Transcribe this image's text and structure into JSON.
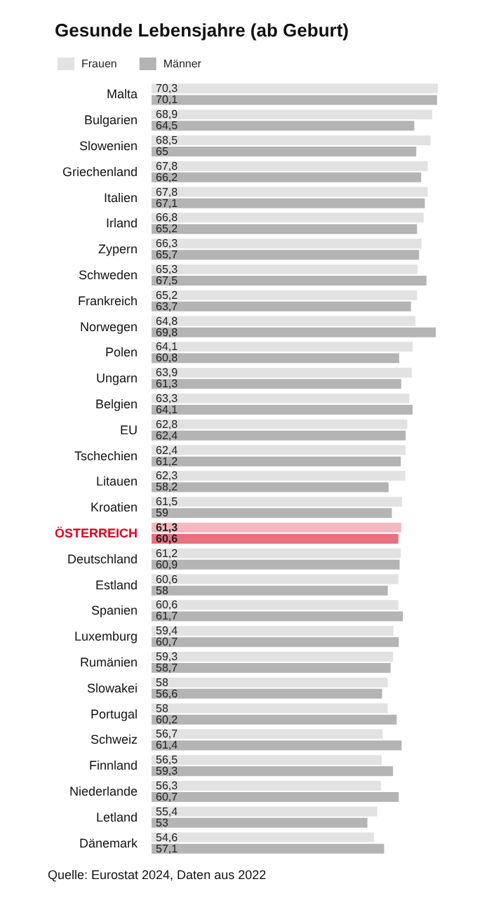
{
  "chart_data": {
    "type": "bar",
    "orientation": "horizontal",
    "title": "Gesunde Lebensjahre (ab Geburt)",
    "legend": "top left",
    "data_labels": true,
    "categories": [
      "Malta",
      "Bulgarien",
      "Slowenien",
      "Griechenland",
      "Italien",
      "Irland",
      "Zypern",
      "Schweden",
      "Frankreich",
      "Norwegen",
      "Polen",
      "Ungarn",
      "Belgien",
      "EU",
      "Tschechien",
      "Litauen",
      "Kroatien",
      "ÖSTERREICH",
      "Deutschland",
      "Estland",
      "Spanien",
      "Luxemburg",
      "Rumänien",
      "Slowakei",
      "Portugal",
      "Schweiz",
      "Finnland",
      "Niederlande",
      "Letland",
      "Dänemark"
    ],
    "series": [
      {
        "name": "Frauen",
        "color": "#e2e2e2",
        "colors": [
          "#e2e2e2",
          "#e2e2e2",
          "#e2e2e2",
          "#e2e2e2",
          "#e2e2e2",
          "#e2e2e2",
          "#e2e2e2",
          "#e2e2e2",
          "#e2e2e2",
          "#e2e2e2",
          "#e2e2e2",
          "#e2e2e2",
          "#e2e2e2",
          "#e2e2e2",
          "#e2e2e2",
          "#e2e2e2",
          "#e2e2e2",
          "#f5b8c0",
          "#e2e2e2",
          "#e2e2e2",
          "#e2e2e2",
          "#e2e2e2",
          "#e2e2e2",
          "#e2e2e2",
          "#e2e2e2",
          "#e2e2e2",
          "#e2e2e2",
          "#e2e2e2",
          "#e2e2e2",
          "#e2e2e2"
        ],
        "values": [
          70.3,
          68.9,
          68.5,
          67.8,
          67.8,
          66.8,
          66.3,
          65.3,
          65.2,
          64.8,
          64.1,
          63.9,
          63.3,
          62.8,
          62.4,
          62.3,
          61.5,
          61.3,
          61.2,
          60.6,
          60.6,
          59.4,
          59.3,
          58,
          58,
          56.7,
          56.5,
          56.3,
          55.4,
          54.6
        ],
        "value_labels": [
          "70,3",
          "68,9",
          "68,5",
          "67,8",
          "67,8",
          "66,8",
          "66,3",
          "65,3",
          "65,2",
          "64,8",
          "64,1",
          "63,9",
          "63,3",
          "62,8",
          "62,4",
          "62,3",
          "61,5",
          "61,3",
          "61,2",
          "60,6",
          "60,6",
          "59,4",
          "59,3",
          "58",
          "58",
          "56,7",
          "56,5",
          "56,3",
          "55,4",
          "54,6"
        ]
      },
      {
        "name": "Männer",
        "color": "#b4b4b4",
        "colors": [
          "#b4b4b4",
          "#b4b4b4",
          "#b4b4b4",
          "#b4b4b4",
          "#b4b4b4",
          "#b4b4b4",
          "#b4b4b4",
          "#b4b4b4",
          "#b4b4b4",
          "#b4b4b4",
          "#b4b4b4",
          "#b4b4b4",
          "#b4b4b4",
          "#b4b4b4",
          "#b4b4b4",
          "#b4b4b4",
          "#b4b4b4",
          "#e8707f",
          "#b4b4b4",
          "#b4b4b4",
          "#b4b4b4",
          "#b4b4b4",
          "#b4b4b4",
          "#b4b4b4",
          "#b4b4b4",
          "#b4b4b4",
          "#b4b4b4",
          "#b4b4b4",
          "#b4b4b4",
          "#b4b4b4"
        ],
        "values": [
          70.1,
          64.5,
          65,
          66.2,
          67.1,
          65.2,
          65.7,
          67.5,
          63.7,
          69.8,
          60.8,
          61.3,
          64.1,
          62.4,
          61.2,
          58.2,
          59,
          60.6,
          60.9,
          58,
          61.7,
          60.7,
          58.7,
          56.6,
          60.2,
          61.4,
          59.3,
          60.7,
          53,
          57.1
        ],
        "value_labels": [
          "70,1",
          "64,5",
          "65",
          "66,2",
          "67,1",
          "65,2",
          "65,7",
          "67,5",
          "63,7",
          "69,8",
          "60,8",
          "61,3",
          "64,1",
          "62,4",
          "61,2",
          "58,2",
          "59",
          "60,6",
          "60,9",
          "58",
          "61,7",
          "60,7",
          "58,7",
          "56,6",
          "60,2",
          "61,4",
          "59,3",
          "60,7",
          "53",
          "57,1"
        ]
      }
    ],
    "annotations": [
      "Quelle: Eurostat 2024, Daten aus 2022"
    ]
  }
}
